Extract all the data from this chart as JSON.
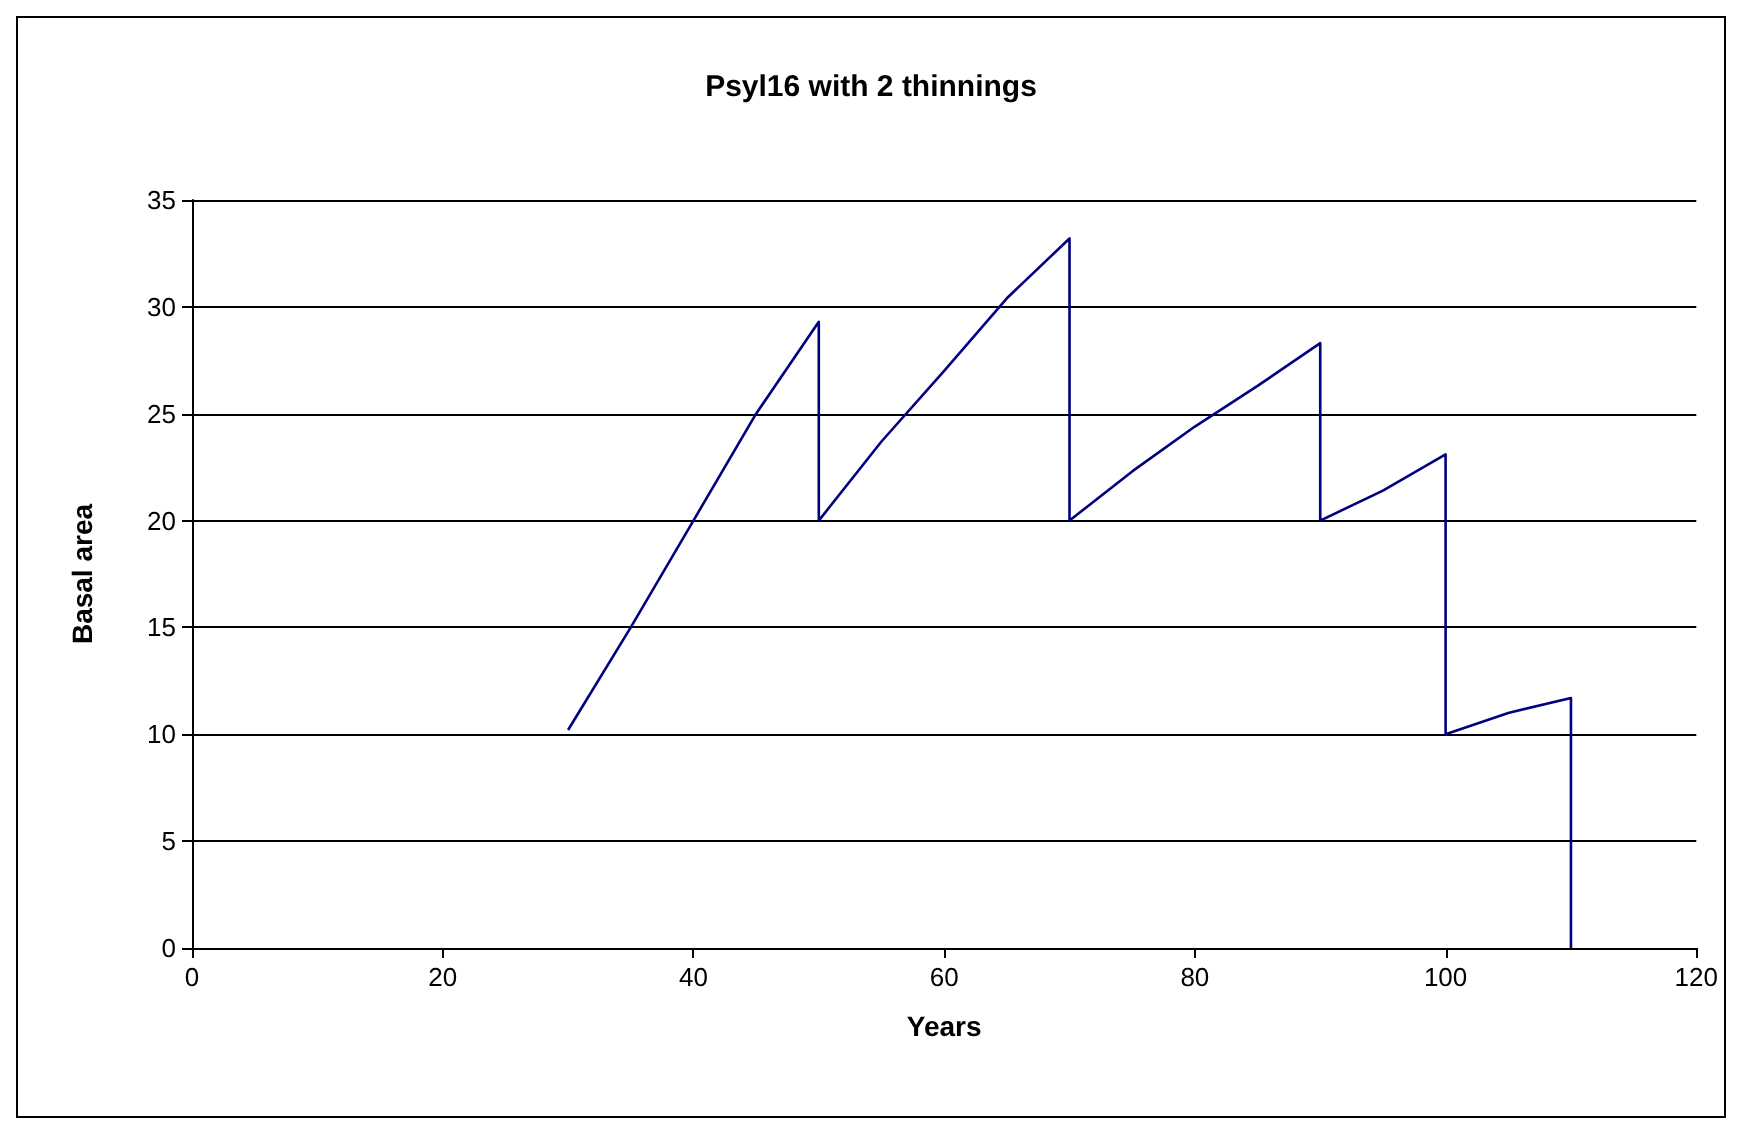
{
  "chart_data": {
    "type": "line",
    "title": "Psyl16 with 2 thinnings",
    "xlabel": "Years",
    "ylabel": "Basal area",
    "x": [
      30,
      35,
      40,
      45,
      50,
      50,
      55,
      60,
      65,
      70,
      70,
      75,
      80,
      85,
      90,
      90,
      95,
      100,
      100,
      105,
      110,
      110
    ],
    "series": [
      {
        "color": "#000080",
        "values": [
          10.2,
          15,
          20,
          25,
          29.3,
          20,
          23.7,
          27,
          30.4,
          33.2,
          20,
          22.3,
          24.4,
          26.3,
          28.3,
          20,
          21.4,
          23.1,
          10,
          11,
          11.7,
          0
        ]
      }
    ],
    "xlim": [
      0,
      120
    ],
    "xticks": [
      0,
      20,
      40,
      60,
      80,
      100,
      120
    ],
    "ylim": [
      0,
      35
    ],
    "yticks": [
      0,
      5,
      10,
      15,
      20,
      25,
      30,
      35
    ],
    "grid": "y",
    "marker": "none",
    "line_style": "solid"
  }
}
